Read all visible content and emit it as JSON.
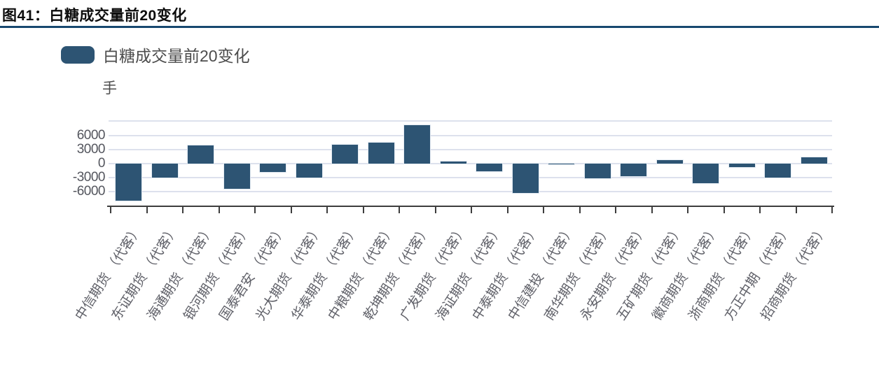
{
  "figure": {
    "title": "图41：白糖成交量前20变化"
  },
  "legend": {
    "label": "白糖成交量前20变化"
  },
  "unit_label": "手",
  "chart_data": {
    "type": "bar",
    "title": "白糖成交量前20变化",
    "xlabel": "",
    "ylabel": "手",
    "categories": [
      "中信期货 （代客）",
      "东证期货 （代客）",
      "海通期货 （代客）",
      "银河期货 （代客）",
      "国泰君安 （代客）",
      "光大期货 （代客）",
      "华泰期货 （代客）",
      "中粮期货 （代客）",
      "乾坤期货 （代客）",
      "广发期货 （代客）",
      "海证期货 （代客）",
      "中泰期货 （代客）",
      "中信建投 （代客）",
      "南华期货 （代客）",
      "永安期货 （代客）",
      "五矿期货 （代客）",
      "徽商期货 （代客）",
      "浙商期货 （代客）",
      "方正中期 （代客）",
      "招商期货 （代客）"
    ],
    "values": [
      -7900,
      -3000,
      3800,
      -5300,
      -1800,
      -3000,
      4000,
      4500,
      8200,
      500,
      -1600,
      -6200,
      -200,
      -3100,
      -2600,
      700,
      -4200,
      -800,
      -2900,
      1300
    ],
    "yticks": [
      6000,
      3000,
      0,
      -3000,
      -6000
    ],
    "gridline_values": [
      9000,
      6000,
      3000,
      0,
      -3000,
      -6000
    ],
    "ylim": [
      -9200,
      9200
    ],
    "grid": true,
    "legend_position": "top-left",
    "bar_color": "#2d5473",
    "gridline_color": "#dde1ed",
    "axis_color": "#3d3d3d"
  }
}
